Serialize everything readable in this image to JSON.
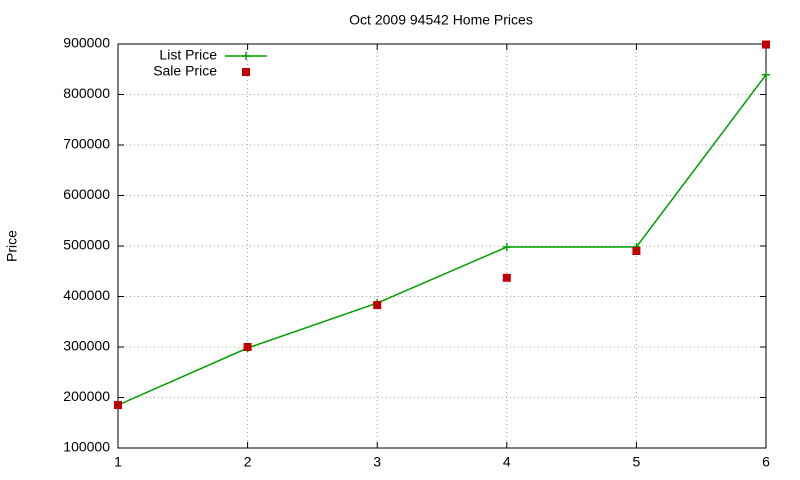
{
  "chart_data": {
    "type": "line",
    "title": "Oct 2009 94542 Home Prices",
    "y_label": "Price",
    "x": [
      1,
      2,
      3,
      4,
      5,
      6
    ],
    "series": [
      {
        "name": "List Price",
        "color": "#00a000",
        "mode": "lines+markers",
        "values": [
          185000,
          298000,
          387000,
          498000,
          498000,
          839000
        ]
      },
      {
        "name": "Sale Price",
        "color": "#c00000",
        "mode": "markers",
        "values": [
          185000,
          300000,
          383000,
          437000,
          490000,
          899000
        ]
      }
    ],
    "xlim": [
      1,
      6
    ],
    "xticks": [
      1,
      2,
      3,
      4,
      5,
      6
    ],
    "ylim": [
      100000,
      900000
    ],
    "yticks": [
      100000,
      200000,
      300000,
      400000,
      500000,
      600000,
      700000,
      800000,
      900000
    ],
    "grid": true,
    "legend": "top-left"
  }
}
